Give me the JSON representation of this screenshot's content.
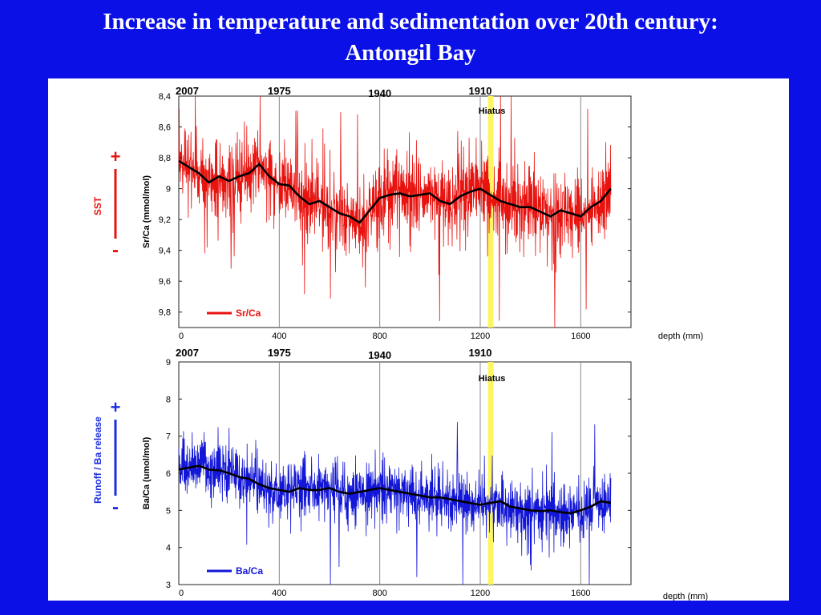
{
  "slide": {
    "title_line1": "Increase in temperature and sedimentation over 20th century:",
    "title_line2": "Antongil Bay"
  },
  "chart_data": [
    {
      "type": "line",
      "name_key": "srca",
      "ylabel": "Sr/Ca (mmol/mol)",
      "xlabel": "depth (mm)",
      "xlim": [
        0,
        1800
      ],
      "ylim": [
        8.4,
        9.9
      ],
      "y_inverted": true,
      "y_ticks": [
        "8,4",
        "8,6",
        "8,8",
        "9",
        "9,2",
        "9,4",
        "9,6",
        "9,8"
      ],
      "y_tick_values": [
        8.4,
        8.6,
        8.8,
        9.0,
        9.2,
        9.4,
        9.6,
        9.8
      ],
      "x_ticks": [
        "0",
        "400",
        "800",
        "1200",
        "1600"
      ],
      "x_tick_values": [
        0,
        400,
        800,
        1200,
        1600
      ],
      "year_markers": [
        {
          "label": "2007",
          "depth": 0
        },
        {
          "label": "1975",
          "depth": 400
        },
        {
          "label": "1940",
          "depth": 800
        },
        {
          "label": "1910",
          "depth": 1200
        }
      ],
      "hiatus": {
        "label": "Hiatus",
        "depth": 1240
      },
      "legend": "Sr/Ca",
      "side_label": "SST",
      "side_plus": "+",
      "side_minus": "-",
      "raw_color": "#e8130f",
      "side_color": "#e8130f",
      "raw_series": {
        "name": "Sr/Ca",
        "mean": 9.0,
        "amplitude": 0.22,
        "x_end": 1720
      },
      "smooth_series": {
        "x": [
          0,
          40,
          80,
          120,
          160,
          200,
          240,
          280,
          320,
          360,
          400,
          440,
          480,
          520,
          560,
          600,
          640,
          680,
          720,
          760,
          800,
          840,
          880,
          920,
          960,
          1000,
          1040,
          1080,
          1120,
          1160,
          1200,
          1240,
          1280,
          1320,
          1360,
          1400,
          1440,
          1480,
          1520,
          1560,
          1600,
          1640,
          1680,
          1720
        ],
        "values": [
          8.82,
          8.86,
          8.9,
          8.96,
          8.92,
          8.95,
          8.92,
          8.9,
          8.84,
          8.92,
          8.97,
          8.98,
          9.05,
          9.1,
          9.08,
          9.12,
          9.16,
          9.18,
          9.22,
          9.14,
          9.06,
          9.04,
          9.03,
          9.05,
          9.04,
          9.03,
          9.08,
          9.1,
          9.05,
          9.02,
          9.0,
          9.04,
          9.08,
          9.1,
          9.12,
          9.12,
          9.15,
          9.18,
          9.14,
          9.16,
          9.18,
          9.12,
          9.08,
          9.0
        ]
      }
    },
    {
      "type": "line",
      "name_key": "baca",
      "ylabel": "Ba/Ca (umol/mol)",
      "xlabel": "depth (mm)",
      "xlim": [
        0,
        1800
      ],
      "ylim": [
        3,
        9
      ],
      "y_inverted": false,
      "y_ticks": [
        "9",
        "8",
        "7",
        "6",
        "5",
        "4",
        "3"
      ],
      "y_tick_values": [
        9,
        8,
        7,
        6,
        5,
        4,
        3
      ],
      "x_ticks": [
        "0",
        "400",
        "800",
        "1200",
        "1600"
      ],
      "x_tick_values": [
        0,
        400,
        800,
        1200,
        1600
      ],
      "year_markers": [
        {
          "label": "2007",
          "depth": 0
        },
        {
          "label": "1975",
          "depth": 400
        },
        {
          "label": "1940",
          "depth": 800
        },
        {
          "label": "1910",
          "depth": 1200
        }
      ],
      "hiatus": {
        "label": "Hiatus",
        "depth": 1240
      },
      "legend": "Ba/Ca",
      "side_label": "Runoff / Ba release",
      "side_plus": "+",
      "side_minus": "-",
      "raw_color": "#1216d6",
      "side_color": "#1a2ee0",
      "raw_series": {
        "name": "Ba/Ca",
        "mean": 5.6,
        "amplitude": 0.7,
        "x_end": 1720
      },
      "smooth_series": {
        "x": [
          0,
          40,
          80,
          120,
          160,
          200,
          240,
          280,
          320,
          360,
          400,
          440,
          480,
          520,
          560,
          600,
          640,
          680,
          720,
          760,
          800,
          840,
          880,
          920,
          960,
          1000,
          1040,
          1080,
          1120,
          1160,
          1200,
          1240,
          1280,
          1320,
          1360,
          1400,
          1440,
          1480,
          1520,
          1560,
          1600,
          1640,
          1680,
          1720
        ],
        "values": [
          6.1,
          6.15,
          6.2,
          6.1,
          6.08,
          6.0,
          5.9,
          5.85,
          5.7,
          5.6,
          5.55,
          5.5,
          5.6,
          5.55,
          5.55,
          5.6,
          5.5,
          5.45,
          5.5,
          5.55,
          5.6,
          5.55,
          5.5,
          5.45,
          5.4,
          5.35,
          5.35,
          5.3,
          5.25,
          5.2,
          5.15,
          5.2,
          5.25,
          5.1,
          5.05,
          5.0,
          4.98,
          5.0,
          4.95,
          4.92,
          5.0,
          5.1,
          5.25,
          5.2
        ]
      }
    }
  ]
}
